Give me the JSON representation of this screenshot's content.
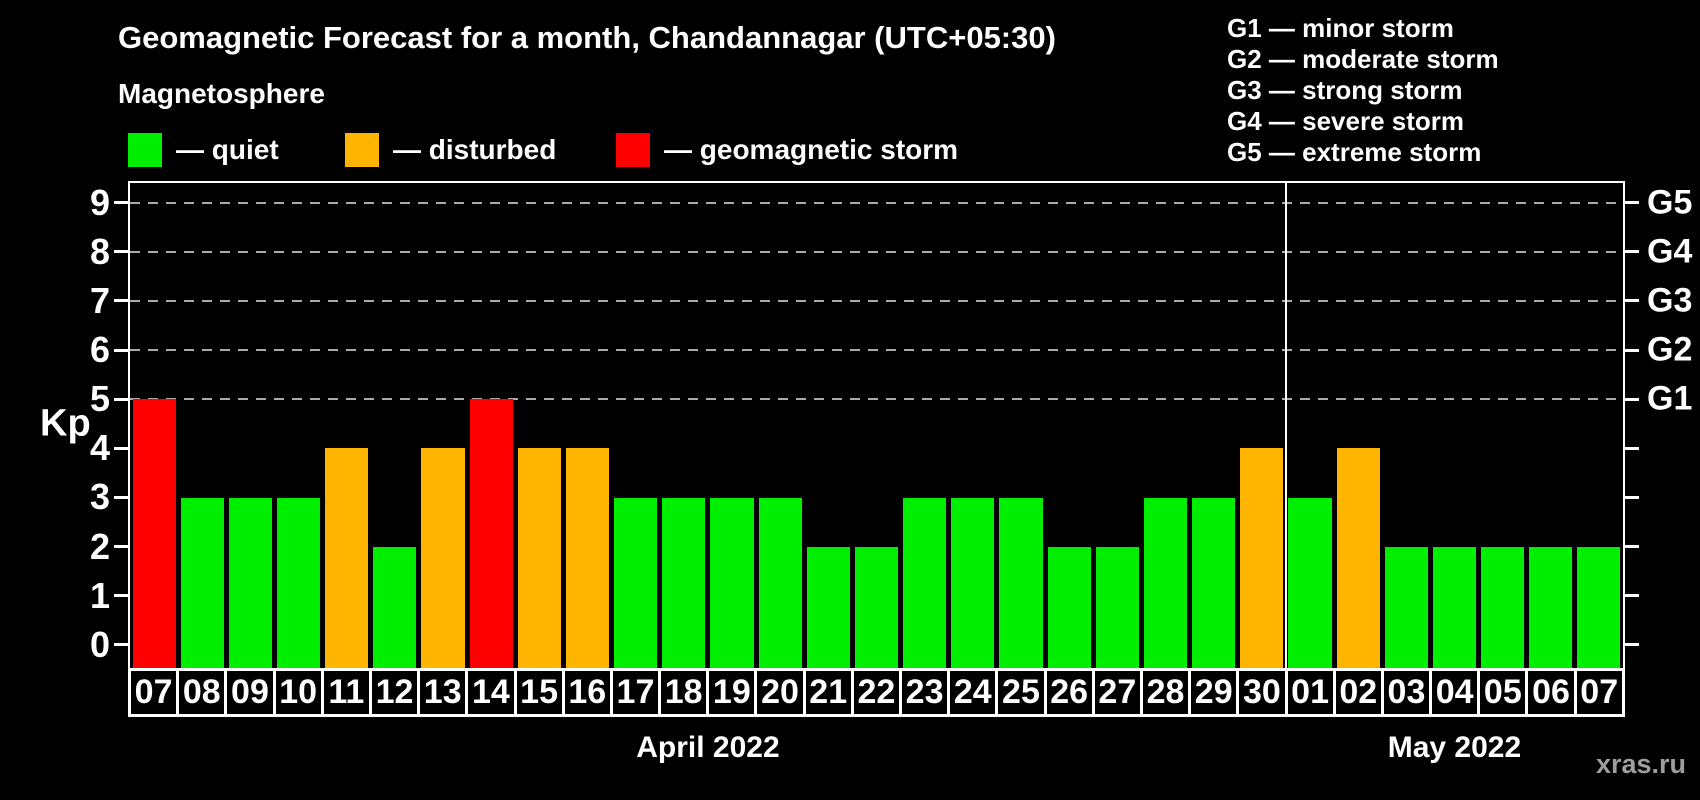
{
  "header": {
    "title": "Geomagnetic Forecast for a month, Chandannagar (UTC+05:30)",
    "subtitle": "Magnetosphere"
  },
  "legend": {
    "items": [
      {
        "name": "quiet",
        "label": "— quiet",
        "color": "#00ee00"
      },
      {
        "name": "disturbed",
        "label": "— disturbed",
        "color": "#ffb400"
      },
      {
        "name": "geomagnetic-storm",
        "label": "— geomagnetic storm",
        "color": "#ff0000"
      }
    ]
  },
  "g_legend": {
    "items": [
      "G1 — minor storm",
      "G2 — moderate storm",
      "G3 — strong storm",
      "G4 — severe storm",
      "G5 — extreme storm"
    ]
  },
  "watermark": {
    "text": "xras.ru",
    "color": "#9e9e9e"
  },
  "chart_data": {
    "type": "bar",
    "title": "Geomagnetic Forecast for a month, Chandannagar (UTC+05:30)",
    "ylabel": "Kp",
    "ylim": [
      0,
      9
    ],
    "yticks": [
      0,
      1,
      2,
      3,
      4,
      5,
      6,
      7,
      8,
      9
    ],
    "gridlines": {
      "style": "dashed",
      "color": "#aaaaaa",
      "levels": [
        5,
        6,
        7,
        8,
        9
      ]
    },
    "right_axis_labels": [
      {
        "level": 5,
        "label": "G1"
      },
      {
        "level": 6,
        "label": "G2"
      },
      {
        "level": 7,
        "label": "G3"
      },
      {
        "level": 8,
        "label": "G4"
      },
      {
        "level": 9,
        "label": "G5"
      }
    ],
    "state_colors": {
      "quiet": "#00ee00",
      "disturbed": "#ffb400",
      "storm": "#ff0000"
    },
    "months": [
      {
        "label": "April 2022",
        "days": [
          {
            "day": "07",
            "kp": 5,
            "state": "storm"
          },
          {
            "day": "08",
            "kp": 3,
            "state": "quiet"
          },
          {
            "day": "09",
            "kp": 3,
            "state": "quiet"
          },
          {
            "day": "10",
            "kp": 3,
            "state": "quiet"
          },
          {
            "day": "11",
            "kp": 4,
            "state": "disturbed"
          },
          {
            "day": "12",
            "kp": 2,
            "state": "quiet"
          },
          {
            "day": "13",
            "kp": 4,
            "state": "disturbed"
          },
          {
            "day": "14",
            "kp": 5,
            "state": "storm"
          },
          {
            "day": "15",
            "kp": 4,
            "state": "disturbed"
          },
          {
            "day": "16",
            "kp": 4,
            "state": "disturbed"
          },
          {
            "day": "17",
            "kp": 3,
            "state": "quiet"
          },
          {
            "day": "18",
            "kp": 3,
            "state": "quiet"
          },
          {
            "day": "19",
            "kp": 3,
            "state": "quiet"
          },
          {
            "day": "20",
            "kp": 3,
            "state": "quiet"
          },
          {
            "day": "21",
            "kp": 2,
            "state": "quiet"
          },
          {
            "day": "22",
            "kp": 2,
            "state": "quiet"
          },
          {
            "day": "23",
            "kp": 3,
            "state": "quiet"
          },
          {
            "day": "24",
            "kp": 3,
            "state": "quiet"
          },
          {
            "day": "25",
            "kp": 3,
            "state": "quiet"
          },
          {
            "day": "26",
            "kp": 2,
            "state": "quiet"
          },
          {
            "day": "27",
            "kp": 2,
            "state": "quiet"
          },
          {
            "day": "28",
            "kp": 3,
            "state": "quiet"
          },
          {
            "day": "29",
            "kp": 3,
            "state": "quiet"
          },
          {
            "day": "30",
            "kp": 4,
            "state": "disturbed"
          }
        ]
      },
      {
        "label": "May 2022",
        "days": [
          {
            "day": "01",
            "kp": 3,
            "state": "quiet"
          },
          {
            "day": "02",
            "kp": 4,
            "state": "disturbed"
          },
          {
            "day": "03",
            "kp": 2,
            "state": "quiet"
          },
          {
            "day": "04",
            "kp": 2,
            "state": "quiet"
          },
          {
            "day": "05",
            "kp": 2,
            "state": "quiet"
          },
          {
            "day": "06",
            "kp": 2,
            "state": "quiet"
          },
          {
            "day": "07",
            "kp": 2,
            "state": "quiet"
          }
        ]
      }
    ]
  }
}
